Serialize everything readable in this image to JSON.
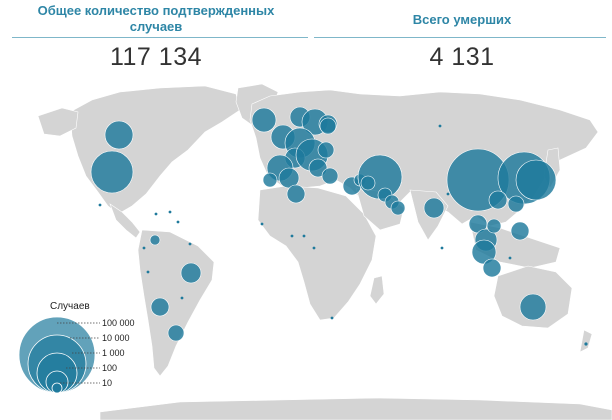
{
  "stats": {
    "confirmed": {
      "title_line1": "Общее количество подтвержденных",
      "title_line2": "случаев",
      "value": "117 134"
    },
    "deaths": {
      "title": "Всего умерших",
      "value": "4 131"
    }
  },
  "legend": {
    "title": "Случаев",
    "levels": [
      "100 000",
      "10 000",
      "1 000",
      "100",
      "10"
    ]
  },
  "colors": {
    "bubble": "#1f7a9c",
    "land": "#d4d4d4",
    "accent": "#2e86a6"
  }
}
